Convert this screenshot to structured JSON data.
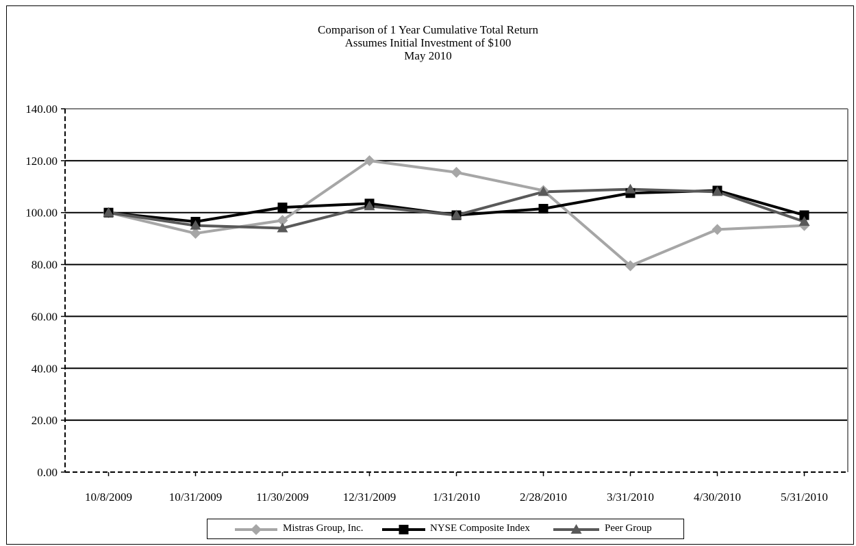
{
  "chart_data": {
    "type": "line",
    "title_lines": [
      "Comparison of 1 Year Cumulative Total Return",
      "Assumes Initial Investment of $100",
      "May 2010"
    ],
    "categories": [
      "10/8/2009",
      "10/31/2009",
      "11/30/2009",
      "12/31/2009",
      "1/31/2010",
      "2/28/2010",
      "3/31/2010",
      "4/30/2010",
      "5/31/2010"
    ],
    "yticks": [
      "0.00",
      "20.00",
      "40.00",
      "60.00",
      "80.00",
      "100.00",
      "120.00",
      "140.00"
    ],
    "ylim": [
      0,
      140
    ],
    "grid": true,
    "legend_position": "bottom",
    "series": [
      {
        "name": "Mistras Group, Inc.",
        "values": [
          100.0,
          92.0,
          97.0,
          120.0,
          115.5,
          108.5,
          79.5,
          93.5,
          95.0
        ],
        "color": "#a6a6a6",
        "marker": "diamond"
      },
      {
        "name": "NYSE Composite Index",
        "values": [
          100.0,
          96.5,
          102.0,
          103.5,
          99.0,
          101.5,
          107.5,
          108.5,
          99.0
        ],
        "color": "#000000",
        "marker": "square"
      },
      {
        "name": "Peer Group",
        "values": [
          100.0,
          95.0,
          94.0,
          102.5,
          99.0,
          108.0,
          109.0,
          108.0,
          96.5
        ],
        "color": "#595959",
        "marker": "triangle"
      }
    ]
  }
}
